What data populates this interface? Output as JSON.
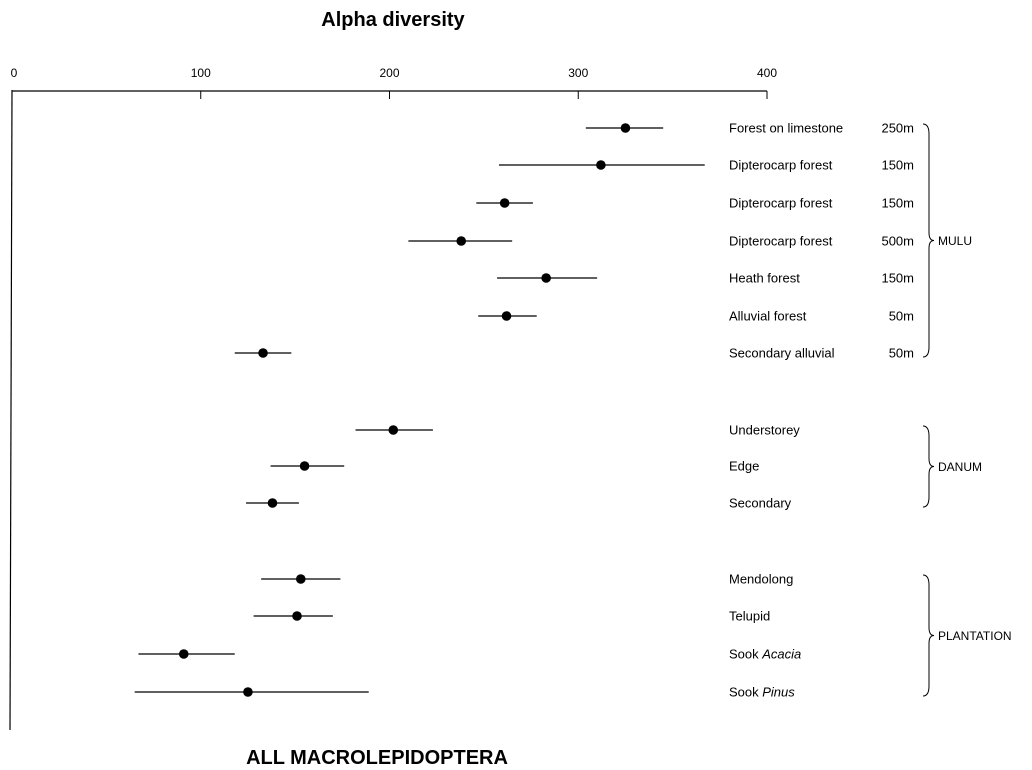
{
  "chart_data": {
    "type": "scatter",
    "title": "Alpha diversity",
    "subtitle": "ALL MACROLEPIDOPTERA",
    "x_axis": {
      "min": 0,
      "max": 400,
      "ticks": [
        0,
        100,
        200,
        300,
        400
      ],
      "position": "top"
    },
    "grid": false,
    "series": [
      {
        "group": "MULU",
        "points": [
          {
            "site": "Forest on limestone",
            "italic": "",
            "altitude": "250m",
            "value": 325,
            "low": 304,
            "high": 345
          },
          {
            "site": "Dipterocarp forest",
            "italic": "",
            "altitude": "150m",
            "value": 312,
            "low": 258,
            "high": 367
          },
          {
            "site": "Dipterocarp forest",
            "italic": "",
            "altitude": "150m",
            "value": 261,
            "low": 246,
            "high": 276
          },
          {
            "site": "Dipterocarp forest",
            "italic": "",
            "altitude": "500m",
            "value": 238,
            "low": 210,
            "high": 265
          },
          {
            "site": "Heath forest",
            "italic": "",
            "altitude": "150m",
            "value": 283,
            "low": 257,
            "high": 310
          },
          {
            "site": "Alluvial forest",
            "italic": "",
            "altitude": "50m",
            "value": 262,
            "low": 247,
            "high": 278
          },
          {
            "site": "Secondary alluvial",
            "italic": "",
            "altitude": "50m",
            "value": 133,
            "low": 118,
            "high": 148
          }
        ]
      },
      {
        "group": "DANUM",
        "points": [
          {
            "site": "Understorey",
            "italic": "",
            "altitude": "",
            "value": 202,
            "low": 182,
            "high": 223
          },
          {
            "site": "Edge",
            "italic": "",
            "altitude": "",
            "value": 155,
            "low": 137,
            "high": 176
          },
          {
            "site": "Secondary",
            "italic": "",
            "altitude": "",
            "value": 138,
            "low": 124,
            "high": 152
          }
        ]
      },
      {
        "group": "PLANTATION",
        "points": [
          {
            "site": "Mendolong",
            "italic": "",
            "altitude": "",
            "value": 153,
            "low": 132,
            "high": 174
          },
          {
            "site": "Telupid",
            "italic": "",
            "altitude": "",
            "value": 151,
            "low": 128,
            "high": 170
          },
          {
            "site": "Sook ",
            "italic": "Acacia",
            "altitude": "",
            "value": 91,
            "low": 67,
            "high": 118
          },
          {
            "site": "Sook ",
            "italic": "Pinus",
            "altitude": "",
            "value": 125,
            "low": 65,
            "high": 189
          }
        ]
      }
    ]
  }
}
